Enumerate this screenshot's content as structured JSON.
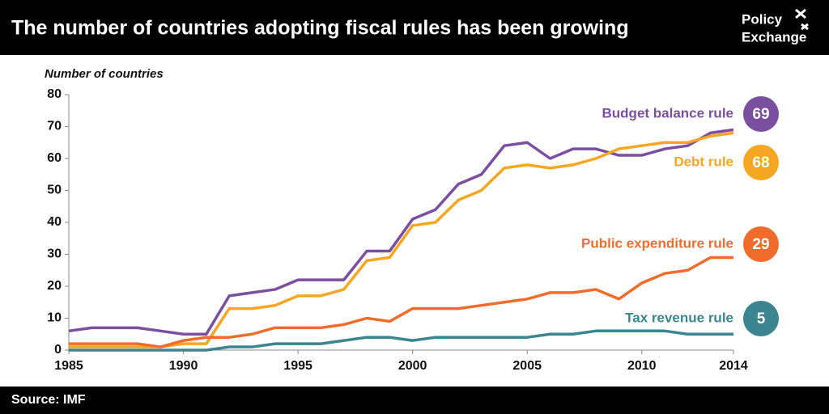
{
  "header": {
    "title": "The number of countries adopting fiscal rules has been growing",
    "logo": [
      "Policy",
      "Exchange"
    ]
  },
  "footer": {
    "source": "Source: IMF"
  },
  "chart_data": {
    "type": "line",
    "y_label": "Number of countries",
    "x": [
      1985,
      1986,
      1987,
      1988,
      1989,
      1990,
      1991,
      1992,
      1993,
      1994,
      1995,
      1996,
      1997,
      1998,
      1999,
      2000,
      2001,
      2002,
      2003,
      2004,
      2005,
      2006,
      2007,
      2008,
      2009,
      2010,
      2011,
      2012,
      2013,
      2014
    ],
    "xlim": [
      1985,
      2014
    ],
    "xticks": [
      1985,
      1990,
      1995,
      2000,
      2005,
      2010,
      2014
    ],
    "ylim": [
      0,
      80
    ],
    "yticks": [
      0,
      10,
      20,
      30,
      40,
      50,
      60,
      70,
      80
    ],
    "series": [
      {
        "name": "Budget balance rule",
        "color": "#7b4fa0",
        "values": [
          6,
          7,
          7,
          7,
          6,
          5,
          5,
          17,
          18,
          19,
          22,
          22,
          22,
          31,
          31,
          41,
          44,
          52,
          55,
          64,
          65,
          60,
          63,
          63,
          61,
          61,
          63,
          64,
          68,
          69
        ]
      },
      {
        "name": "Debt rule",
        "color": "#f5a623",
        "values": [
          1,
          1,
          1,
          1,
          1,
          2,
          2,
          13,
          13,
          14,
          17,
          17,
          19,
          28,
          29,
          39,
          40,
          47,
          50,
          57,
          58,
          57,
          58,
          60,
          63,
          64,
          65,
          65,
          67,
          68
        ]
      },
      {
        "name": "Public expenditure rule",
        "color": "#ef6c2c",
        "values": [
          2,
          2,
          2,
          2,
          1,
          3,
          4,
          4,
          5,
          7,
          7,
          7,
          8,
          10,
          9,
          13,
          13,
          13,
          14,
          15,
          16,
          18,
          18,
          19,
          16,
          21,
          24,
          25,
          29,
          29
        ]
      },
      {
        "name": "Tax revenue rule",
        "color": "#3a8590",
        "values": [
          0,
          0,
          0,
          0,
          0,
          0,
          0,
          1,
          1,
          2,
          2,
          2,
          3,
          4,
          4,
          3,
          4,
          4,
          4,
          4,
          4,
          5,
          5,
          6,
          6,
          6,
          6,
          5,
          5,
          5
        ]
      }
    ]
  }
}
